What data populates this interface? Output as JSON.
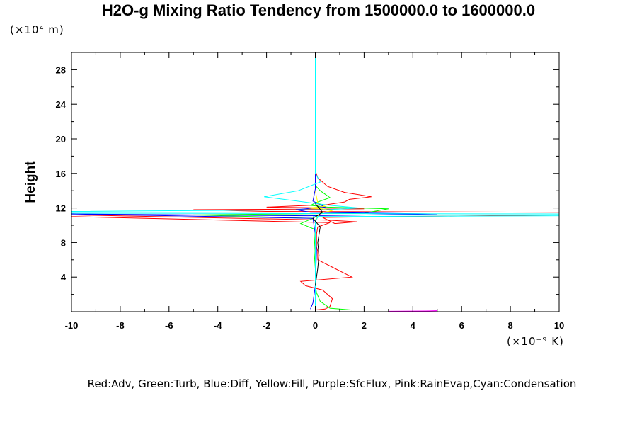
{
  "chart_data": {
    "type": "line",
    "title": "H2O-g Mixing Ratio Tendency from 1500000.0 to 1600000.0",
    "ylabel": "Height",
    "y_multiplier": "(×10⁴ m)",
    "x_multiplier": "(×10⁻⁹ K)",
    "xlim": [
      -10,
      10
    ],
    "ylim": [
      0,
      30
    ],
    "x_ticks": [
      -10,
      -8,
      -6,
      -4,
      -2,
      0,
      2,
      4,
      6,
      8,
      10
    ],
    "y_ticks": [
      4,
      8,
      12,
      16,
      20,
      24,
      28
    ],
    "legend_text": "Red:Adv, Green:Turb, Blue:Diff, Yellow:Fill, Purple:SfcFlux, Pink:RainEvap,Cyan:Condensation",
    "series": [
      {
        "color": "#ff0000",
        "x": [
          0,
          0,
          0.4,
          0.6,
          0.7,
          0.3,
          -0.4,
          -0.6,
          1.5,
          0.8,
          0.1,
          0.1,
          0.05,
          0.05,
          0.05,
          0.1,
          0.3,
          0.6,
          -10,
          -10,
          0.5,
          1.7,
          0.8,
          0.3,
          10,
          10,
          -2,
          -5,
          2,
          1,
          -2,
          0.5,
          1.2,
          1.4,
          2.3,
          1.2,
          0.5,
          0.1,
          0,
          0
        ],
        "y": [
          0,
          0.2,
          0.3,
          0.6,
          1.5,
          2.5,
          3,
          3.5,
          4,
          5,
          6,
          7,
          7.5,
          8,
          9,
          9.8,
          10,
          10.3,
          11.0,
          11.2,
          10.6,
          10.4,
          10.2,
          10.9,
          11.2,
          11.5,
          11.6,
          11.8,
          11.9,
          12.0,
          12.1,
          12.4,
          12.7,
          13.0,
          13.3,
          13.8,
          14.5,
          15.5,
          16.3,
          17
        ]
      },
      {
        "color": "#00ff00",
        "x": [
          1.5,
          0.6,
          0.2,
          0.05,
          0,
          0,
          -0.05,
          0,
          -0.6,
          -0.1,
          -5,
          2,
          3,
          0.5,
          -0.2,
          0.1,
          0.6,
          0.2,
          0,
          0
        ],
        "y": [
          0.2,
          0.4,
          1.2,
          2.2,
          3,
          5,
          7,
          9.5,
          10.2,
          10.8,
          11.2,
          11.4,
          11.9,
          12.1,
          12.3,
          12.7,
          13.2,
          14.0,
          14.6,
          30
        ]
      },
      {
        "color": "#0000ff",
        "x": [
          -0.2,
          -0.1,
          0,
          0.05,
          0,
          -0.1,
          -10,
          -0.3,
          5,
          -0.2,
          -0.8,
          0.4,
          -0.1,
          0,
          0
        ],
        "y": [
          0.3,
          1,
          3,
          7,
          9,
          10.8,
          11.3,
          11.1,
          11.3,
          11.5,
          11.8,
          12.1,
          12.8,
          14.2,
          30
        ]
      },
      {
        "color": "#ffff00",
        "x": [
          0,
          0,
          0.2,
          0.7,
          0.3,
          -0.3,
          0.4,
          0.1,
          0
        ],
        "y": [
          0,
          10.6,
          11.4,
          11.7,
          11.9,
          12.0,
          12.2,
          12.6,
          14
        ]
      },
      {
        "color": "#ff00ff",
        "x": [
          3,
          4.5,
          5,
          4.5,
          4
        ],
        "y": [
          0.05,
          0.08,
          0.1,
          0.07,
          0.05
        ]
      },
      {
        "color": "#00ffff",
        "x": [
          0,
          0,
          0.1,
          -0.1,
          10,
          10,
          -10,
          -10,
          0.5,
          1.8,
          0.6,
          -2.1,
          -0.7,
          0.2,
          0,
          0
        ],
        "y": [
          0,
          10.5,
          10.9,
          11.0,
          11.1,
          11.3,
          11.4,
          11.6,
          11.8,
          12.0,
          12.3,
          13.3,
          14.0,
          15.0,
          16.0,
          30
        ]
      },
      {
        "color": "#000000",
        "x": [
          0,
          0.1,
          0.15,
          0.1,
          0.2,
          -0.1,
          0.3,
          0
        ],
        "y": [
          3,
          5,
          6.5,
          8,
          9.8,
          10.8,
          11.5,
          12.5
        ]
      }
    ]
  }
}
